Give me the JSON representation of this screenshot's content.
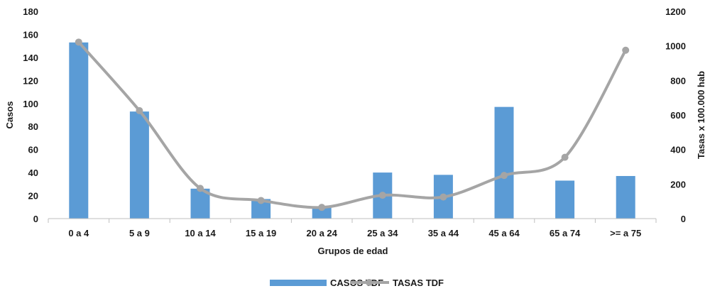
{
  "chart_data": {
    "type": "bar",
    "categories": [
      "0 a 4",
      "5 a 9",
      "10 a 14",
      "15 a 19",
      "20 a 24",
      "25 a 34",
      "35 a 44",
      "45 a 64",
      "65 a 74",
      ">= a 75"
    ],
    "series": [
      {
        "name": "CASOS TDF",
        "type": "bar",
        "axis": "left",
        "color": "#5b9bd5",
        "values": [
          153,
          93,
          26,
          17,
          10,
          40,
          38,
          97,
          33,
          37
        ]
      },
      {
        "name": "TASAS TDF",
        "type": "line",
        "axis": "right",
        "color": "#a5a5a5",
        "values": [
          1022,
          625,
          175,
          105,
          65,
          135,
          125,
          250,
          355,
          975
        ]
      }
    ],
    "xlabel": "Grupos de edad",
    "ylabel": "Casos",
    "y2label": "Tasas x 100.000 hab",
    "ylim": [
      0,
      180
    ],
    "y2lim": [
      0,
      1200
    ],
    "yticks": [
      "0",
      "20",
      "40",
      "60",
      "80",
      "100",
      "120",
      "140",
      "160",
      "180"
    ],
    "y2ticks": [
      "0",
      "200",
      "400",
      "600",
      "800",
      "1000",
      "1200"
    ],
    "grid": false,
    "legend": "bottom-center"
  }
}
